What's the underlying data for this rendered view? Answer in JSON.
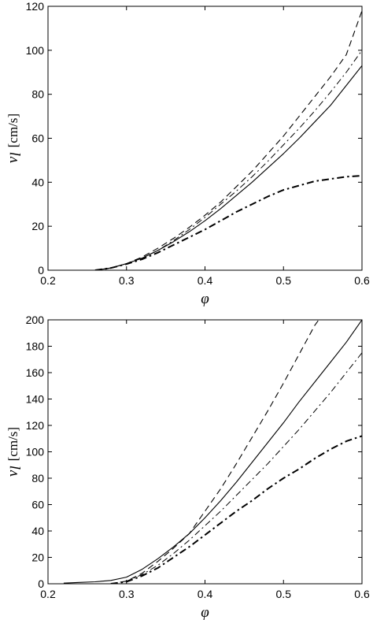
{
  "chart_data": [
    {
      "type": "line",
      "xlabel": "φ",
      "ylabel": "v_l [cm/s]",
      "ylabel_main": "v",
      "ylabel_sub": "l",
      "ylabel_unit": "[cm/s]",
      "xlim": [
        0.2,
        0.6
      ],
      "ylim": [
        0,
        120
      ],
      "xticks": [
        "0.2",
        "0.3",
        "0.4",
        "0.5",
        "0.6"
      ],
      "yticks": [
        "0",
        "20",
        "40",
        "60",
        "80",
        "100",
        "120"
      ],
      "grid": false,
      "series": [
        {
          "style": "solid",
          "color": "#000000",
          "x": [
            0.26,
            0.28,
            0.3,
            0.32,
            0.34,
            0.36,
            0.38,
            0.4,
            0.42,
            0.44,
            0.46,
            0.48,
            0.5,
            0.52,
            0.54,
            0.56,
            0.58,
            0.6
          ],
          "y": [
            0,
            1,
            3,
            5.5,
            9,
            13,
            17.5,
            22.5,
            28,
            34,
            40,
            46.5,
            53,
            60,
            67.5,
            75,
            84,
            93
          ]
        },
        {
          "style": "dashed",
          "color": "#000000",
          "x": [
            0.26,
            0.28,
            0.3,
            0.32,
            0.34,
            0.36,
            0.38,
            0.4,
            0.42,
            0.44,
            0.46,
            0.48,
            0.5,
            0.52,
            0.54,
            0.56,
            0.58,
            0.6
          ],
          "y": [
            0,
            1,
            3,
            6,
            10,
            14.5,
            19.5,
            25,
            31,
            38,
            45,
            53,
            61,
            70,
            79,
            88,
            98,
            118
          ]
        },
        {
          "style": "dashdot-thin",
          "color": "#000000",
          "x": [
            0.26,
            0.28,
            0.3,
            0.32,
            0.34,
            0.36,
            0.38,
            0.4,
            0.42,
            0.44,
            0.46,
            0.48,
            0.5,
            0.52,
            0.54,
            0.56,
            0.58,
            0.6
          ],
          "y": [
            0,
            1,
            3,
            5.5,
            9,
            13.5,
            18.5,
            24,
            30,
            36,
            42.5,
            49.5,
            57,
            64.5,
            72.5,
            81,
            90,
            100
          ]
        },
        {
          "style": "dashdot-thick",
          "color": "#000000",
          "x": [
            0.26,
            0.28,
            0.3,
            0.32,
            0.34,
            0.36,
            0.38,
            0.4,
            0.42,
            0.44,
            0.46,
            0.48,
            0.5,
            0.52,
            0.54,
            0.56,
            0.58,
            0.6
          ],
          "y": [
            0,
            1,
            2.8,
            5,
            8,
            11.5,
            15,
            18.5,
            22.5,
            26.5,
            30,
            33.5,
            36.5,
            38.5,
            40.5,
            41.5,
            42.5,
            43
          ]
        }
      ]
    },
    {
      "type": "line",
      "xlabel": "φ",
      "ylabel": "v_l [cm/s]",
      "ylabel_main": "v",
      "ylabel_sub": "l",
      "ylabel_unit": "[cm/s]",
      "xlim": [
        0.2,
        0.6
      ],
      "ylim": [
        0,
        200
      ],
      "xticks": [
        "0.2",
        "0.3",
        "0.4",
        "0.5",
        "0.6"
      ],
      "yticks": [
        "0",
        "20",
        "40",
        "60",
        "80",
        "100",
        "120",
        "140",
        "160",
        "180",
        "200"
      ],
      "grid": false,
      "series": [
        {
          "style": "solid",
          "color": "#000000",
          "x": [
            0.22,
            0.24,
            0.26,
            0.28,
            0.3,
            0.32,
            0.34,
            0.36,
            0.38,
            0.4,
            0.42,
            0.44,
            0.46,
            0.48,
            0.5,
            0.52,
            0.54,
            0.56,
            0.58,
            0.6
          ],
          "y": [
            0.5,
            1,
            1.5,
            2.5,
            5,
            11,
            19,
            28,
            38,
            50,
            63,
            77,
            92,
            107,
            122,
            138,
            153,
            168,
            183,
            200
          ]
        },
        {
          "style": "dashed",
          "color": "#000000",
          "x": [
            0.28,
            0.3,
            0.32,
            0.34,
            0.36,
            0.38,
            0.4,
            0.42,
            0.44,
            0.46,
            0.48,
            0.5,
            0.52,
            0.54,
            0.545
          ],
          "y": [
            0,
            2,
            8,
            17,
            27,
            38,
            55,
            72,
            91,
            111,
            131,
            152,
            174,
            196,
            200
          ]
        },
        {
          "style": "dashdot-thin",
          "color": "#000000",
          "x": [
            0.28,
            0.3,
            0.32,
            0.34,
            0.36,
            0.38,
            0.4,
            0.42,
            0.44,
            0.46,
            0.48,
            0.5,
            0.52,
            0.54,
            0.56,
            0.58,
            0.6
          ],
          "y": [
            0,
            2,
            7,
            14,
            23,
            33,
            44,
            55,
            67,
            79,
            91,
            104,
            117,
            131,
            145,
            160,
            175
          ]
        },
        {
          "style": "dashdot-thick",
          "color": "#000000",
          "x": [
            0.28,
            0.3,
            0.32,
            0.34,
            0.36,
            0.38,
            0.4,
            0.42,
            0.44,
            0.46,
            0.48,
            0.5,
            0.52,
            0.54,
            0.56,
            0.58,
            0.6
          ],
          "y": [
            0,
            1.5,
            6,
            12,
            20,
            28,
            37,
            46,
            55,
            63,
            72,
            80,
            87,
            95,
            102,
            108,
            112
          ]
        }
      ]
    }
  ]
}
